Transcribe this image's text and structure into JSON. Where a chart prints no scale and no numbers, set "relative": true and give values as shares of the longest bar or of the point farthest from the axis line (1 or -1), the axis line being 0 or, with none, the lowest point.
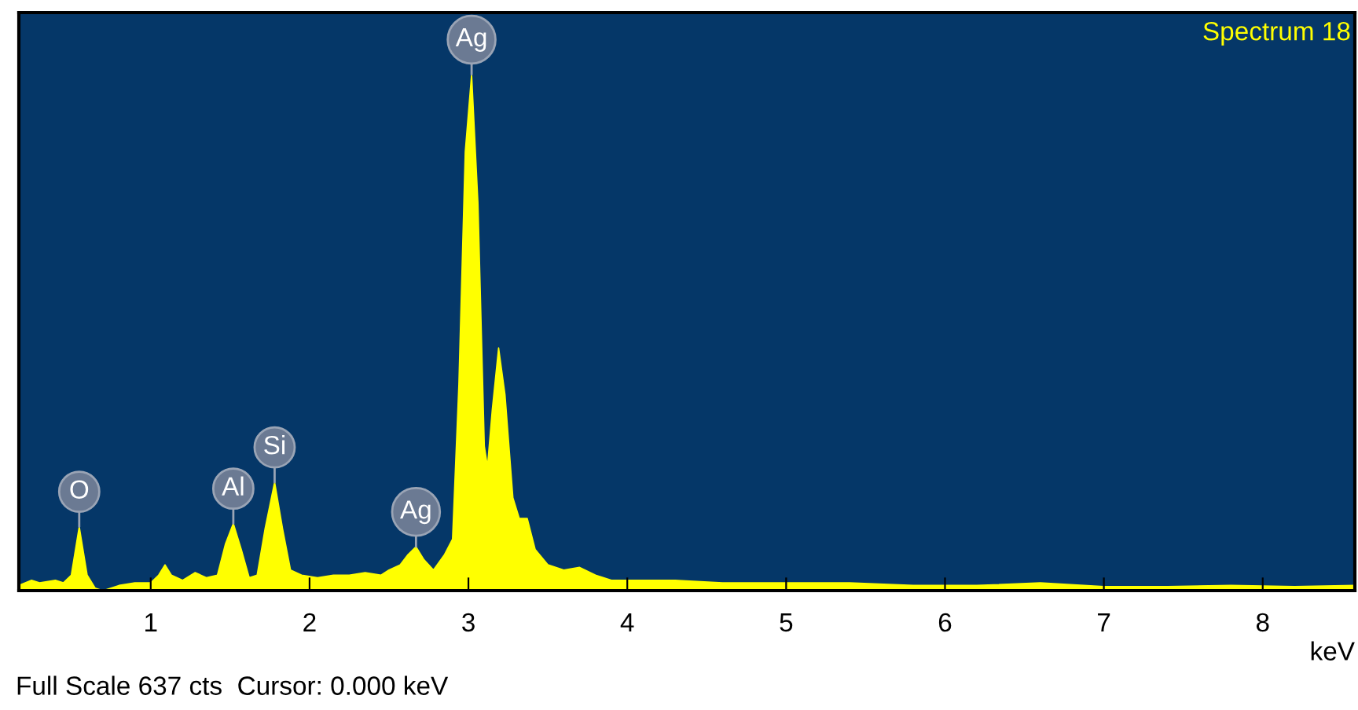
{
  "chart_data": {
    "type": "area",
    "relative": true,
    "color": "#ffff00",
    "xlabel": "keV",
    "xlim": [
      0.17,
      8.58
    ],
    "xticks": [
      1,
      2,
      3,
      4,
      5,
      6,
      7,
      8
    ],
    "x": [
      0.17,
      0.25,
      0.3,
      0.4,
      0.45,
      0.5,
      0.55,
      0.6,
      0.65,
      0.7,
      0.75,
      0.8,
      0.9,
      1.0,
      1.05,
      1.09,
      1.13,
      1.2,
      1.28,
      1.35,
      1.42,
      1.47,
      1.52,
      1.57,
      1.62,
      1.67,
      1.72,
      1.78,
      1.83,
      1.88,
      1.95,
      2.05,
      2.15,
      2.25,
      2.35,
      2.45,
      2.5,
      2.57,
      2.62,
      2.67,
      2.72,
      2.78,
      2.85,
      2.9,
      2.94,
      2.98,
      3.02,
      3.06,
      3.1,
      3.12,
      3.15,
      3.19,
      3.23,
      3.28,
      3.32,
      3.37,
      3.42,
      3.5,
      3.6,
      3.7,
      3.8,
      3.9,
      4.0,
      4.3,
      4.6,
      5.0,
      5.4,
      5.8,
      6.2,
      6.6,
      7.0,
      7.4,
      7.8,
      8.2,
      8.58
    ],
    "values": [
      0.01,
      0.02,
      0.015,
      0.02,
      0.015,
      0.03,
      0.124,
      0.03,
      0.005,
      0,
      0.005,
      0.01,
      0.015,
      0.015,
      0.03,
      0.05,
      0.03,
      0.02,
      0.035,
      0.025,
      0.03,
      0.09,
      0.13,
      0.08,
      0.025,
      0.03,
      0.12,
      0.21,
      0.12,
      0.04,
      0.03,
      0.025,
      0.03,
      0.03,
      0.035,
      0.03,
      0.04,
      0.05,
      0.07,
      0.085,
      0.06,
      0.04,
      0.07,
      0.1,
      0.4,
      0.85,
      1,
      0.75,
      0.28,
      0.24,
      0.35,
      0.47,
      0.38,
      0.18,
      0.14,
      0.14,
      0.08,
      0.05,
      0.04,
      0.045,
      0.03,
      0.02,
      0.02,
      0.02,
      0.015,
      0.015,
      0.015,
      0.01,
      0.01,
      0.015,
      0.008,
      0.008,
      0.01,
      0.008,
      0.01
    ],
    "annotations": [
      {
        "text": "O",
        "x": 0.55,
        "y": 0.124
      },
      {
        "text": "Al",
        "x": 1.52,
        "y": 0.13
      },
      {
        "text": "Si",
        "x": 1.78,
        "y": 0.21
      },
      {
        "text": "Ag",
        "x": 2.67,
        "y": 0.085
      },
      {
        "text": "Ag",
        "x": 3.02,
        "y": 1
      },
      "Spectrum 18",
      "Full Scale 637 cts  Cursor: 0.000 keV"
    ]
  }
}
